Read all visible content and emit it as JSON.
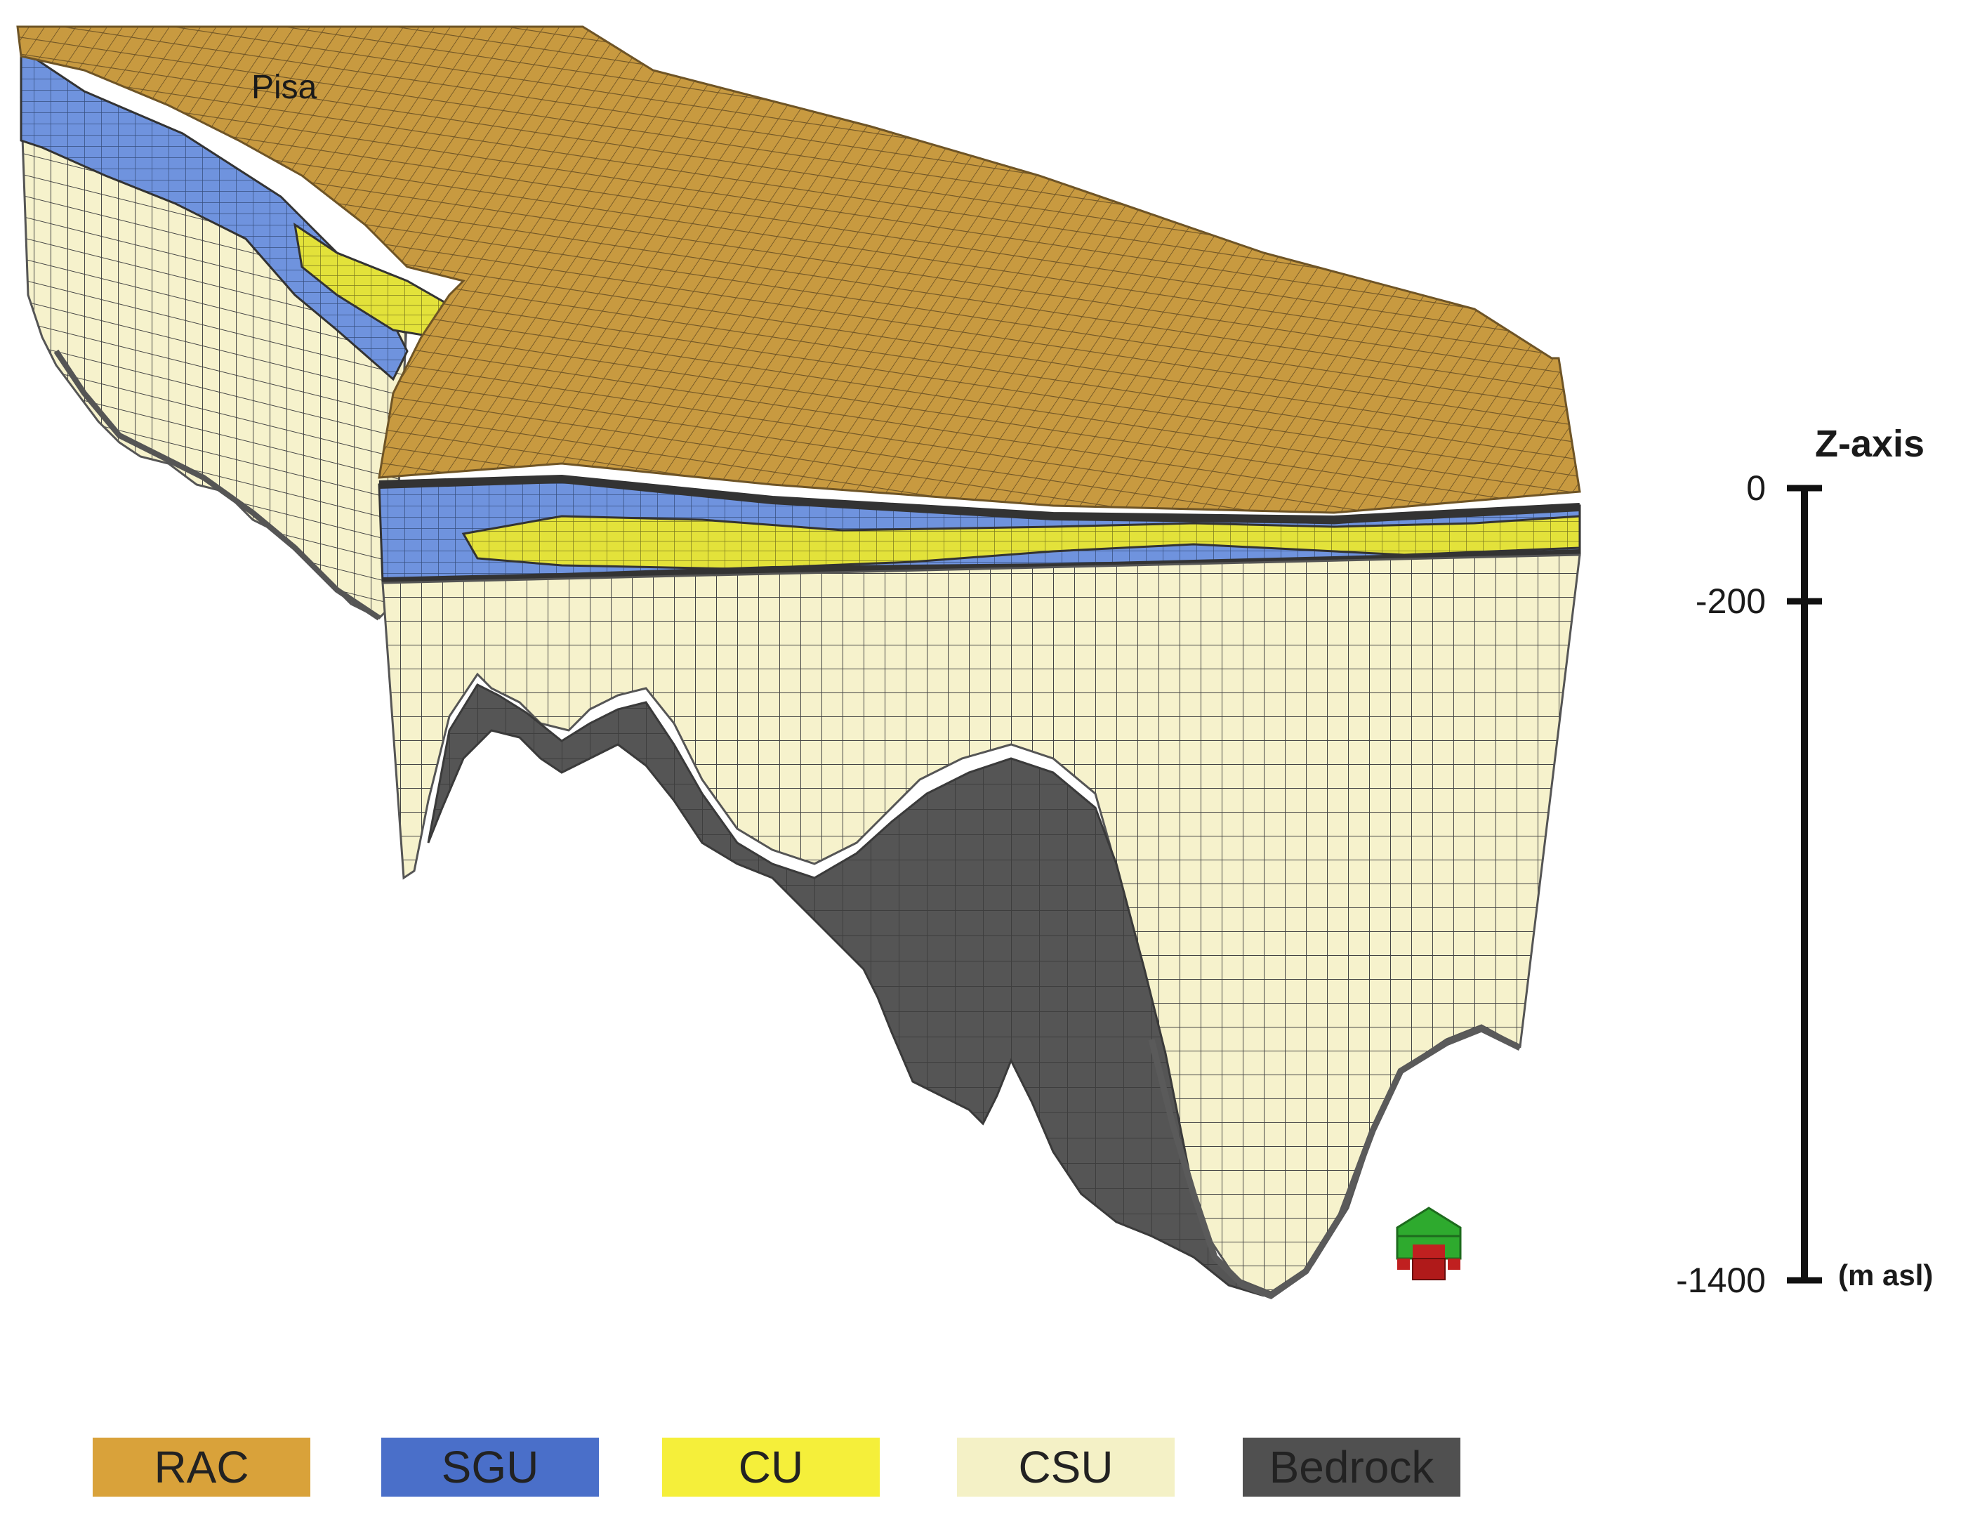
{
  "place_label": "Pisa",
  "z_axis": {
    "title": "Z-axis",
    "unit": "(m asl)",
    "ticks": [
      {
        "value": 0,
        "label": "0"
      },
      {
        "value": -200,
        "label": "-200"
      },
      {
        "value": -1400,
        "label": "-1400"
      }
    ],
    "range": [
      -1400,
      0
    ]
  },
  "legend": [
    {
      "label": "RAC",
      "color": "#d9a23a"
    },
    {
      "label": "SGU",
      "color": "#4a6fc9"
    },
    {
      "label": "CU",
      "color": "#f5ef3a"
    },
    {
      "label": "CSU",
      "color": "#f4f1c6"
    },
    {
      "label": "Bedrock",
      "color": "#505050"
    }
  ],
  "colors": {
    "rac_top": "#c6983e",
    "sgu": "#6f93de",
    "cu": "#e6e43a",
    "csu": "#f6f2cc",
    "bedrock": "#4f4f4f",
    "grid": "#4a4a4a"
  },
  "icons": {
    "orientation": "orientation-cube-icon"
  }
}
